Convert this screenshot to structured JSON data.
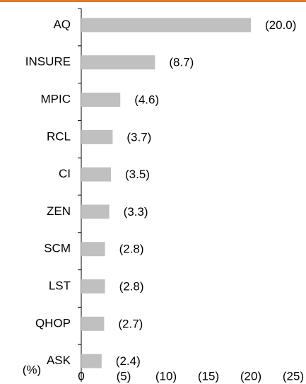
{
  "chart_data": {
    "type": "hbar",
    "x_label": "(%)",
    "categories": [
      "AQ",
      "INSURE",
      "MPIC",
      "RCL",
      "CI",
      "ZEN",
      "SCM",
      "LST",
      "QHOP",
      "ASK"
    ],
    "values": [
      -20.0,
      -8.7,
      -4.6,
      -3.7,
      -3.5,
      -3.3,
      -2.8,
      -2.8,
      -2.7,
      -2.4
    ],
    "value_labels": [
      "(20.0)",
      "(8.7)",
      "(4.6)",
      "(3.7)",
      "(3.5)",
      "(3.3)",
      "(2.8)",
      "(2.8)",
      "(2.7)",
      "(2.4)"
    ],
    "color": "#c0c0c0",
    "xlim": [
      0,
      -25
    ],
    "xticks": [
      0,
      {
        "value": -5,
        "label": "(5)"
      },
      {
        "value": -10,
        "label": "(10)"
      },
      {
        "value": -15,
        "label": "(15)"
      },
      {
        "value": -20,
        "label": "(20)"
      },
      {
        "value": -25,
        "label": "(25)"
      }
    ],
    "grid": false
  }
}
